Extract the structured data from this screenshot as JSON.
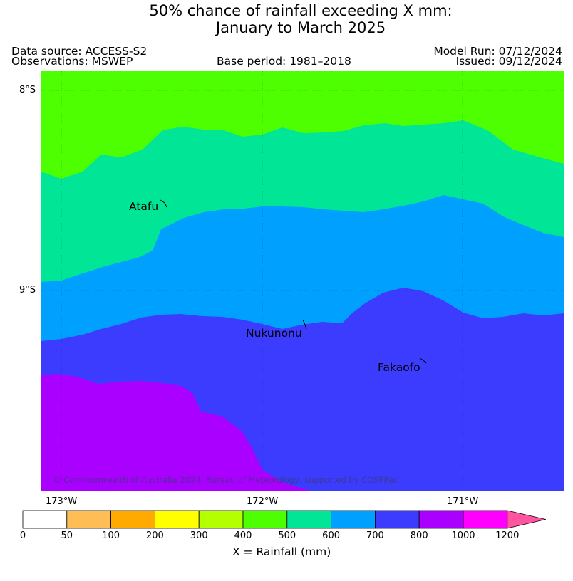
{
  "title": {
    "line1": "50% chance of rainfall exceeding X mm:",
    "line2": "January to March 2025"
  },
  "meta": {
    "data_source": "Data source: ACCESS-S2",
    "observations": "Observations: MSWEP",
    "base_period": "Base period: 1981–2018",
    "model_run": "Model Run: 07/12/2024",
    "issued": "Issued: 09/12/2024"
  },
  "map": {
    "lat_ticks": [
      "8°S",
      "9°S"
    ],
    "lon_ticks": [
      "173°W",
      "172°W",
      "171°W"
    ],
    "places": [
      "Atafu",
      "Nukunonu",
      "Fakaofo"
    ],
    "copyright": "© Commonwealth of Australia 2024, Bureau of Meteorology, supported by COSPPac",
    "zone_colors": {
      "400_500": "#4dff00",
      "500_600": "#00e696",
      "600_700": "#00a0ff",
      "700_800": "#3c3cff",
      "800_1000": "#aa00ff"
    }
  },
  "colorbar": {
    "ticks": [
      "0",
      "50",
      "100",
      "200",
      "300",
      "400",
      "500",
      "600",
      "700",
      "800",
      "1000",
      "1200"
    ],
    "colors": [
      "#ffffff",
      "#ffbe55",
      "#ffaa00",
      "#ffff00",
      "#b4ff00",
      "#4dff00",
      "#00e696",
      "#00a0ff",
      "#3c3cff",
      "#aa00ff",
      "#ff00ff",
      "#ff55a0"
    ],
    "label": "X = Rainfall (mm)"
  }
}
